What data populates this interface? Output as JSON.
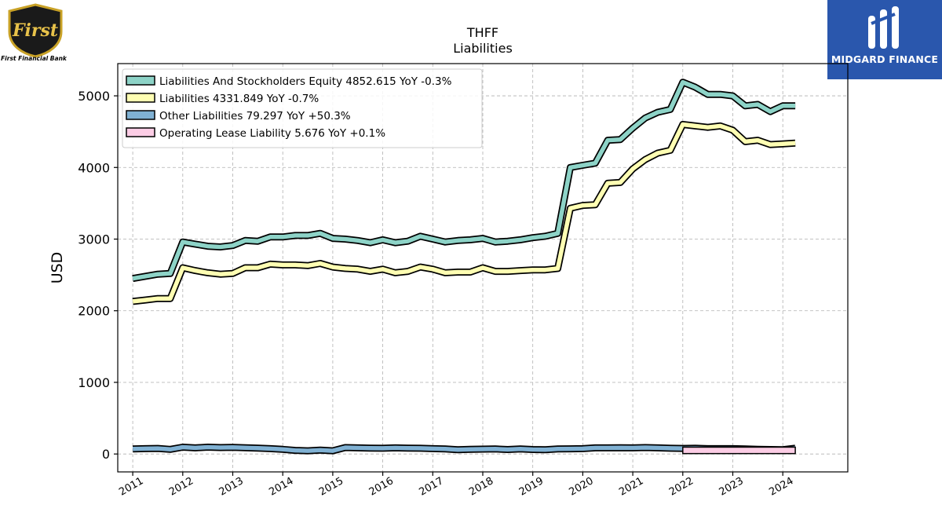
{
  "brand": {
    "left_logo_text": "First",
    "left_caption": "First Financial Bank",
    "right_name": "MIDGARD FINANCE"
  },
  "chart_data": {
    "type": "line",
    "title": "THFF",
    "subtitle": "Liabilities",
    "xlabel": "",
    "ylabel": "USD",
    "xlim": [
      2010.7,
      2025.3
    ],
    "ylim": [
      -250,
      5450
    ],
    "yticks": [
      0,
      1000,
      2000,
      3000,
      4000,
      5000
    ],
    "xticks": [
      "2011",
      "2012",
      "2013",
      "2014",
      "2015",
      "2016",
      "2017",
      "2018",
      "2019",
      "2020",
      "2021",
      "2022",
      "2023",
      "2024"
    ],
    "grid": true,
    "legend_position": "top-left",
    "series": [
      {
        "name": "Liabilities And Stockholders Equity",
        "legend": "Liabilities And Stockholders Equity  4852.615 YoY -0.3%",
        "color": "#8dd3c7",
        "x": [
          2011.0,
          2011.25,
          2011.5,
          2011.75,
          2012.0,
          2012.25,
          2012.5,
          2012.75,
          2013.0,
          2013.25,
          2013.5,
          2013.75,
          2014.0,
          2014.25,
          2014.5,
          2014.75,
          2015.0,
          2015.25,
          2015.5,
          2015.75,
          2016.0,
          2016.25,
          2016.5,
          2016.75,
          2017.0,
          2017.25,
          2017.5,
          2017.75,
          2018.0,
          2018.25,
          2018.5,
          2018.75,
          2019.0,
          2019.25,
          2019.5,
          2019.75,
          2020.0,
          2020.25,
          2020.5,
          2020.75,
          2021.0,
          2021.25,
          2021.5,
          2021.75,
          2022.0,
          2022.25,
          2022.5,
          2022.75,
          2023.0,
          2023.25,
          2023.5,
          2023.75,
          2024.0,
          2024.25
        ],
        "values": [
          2450,
          2480,
          2510,
          2520,
          2960,
          2930,
          2900,
          2890,
          2910,
          2980,
          2970,
          3030,
          3030,
          3050,
          3050,
          3080,
          3010,
          3000,
          2980,
          2950,
          2990,
          2950,
          2970,
          3040,
          3000,
          2960,
          2980,
          2990,
          3010,
          2960,
          2970,
          2990,
          3020,
          3040,
          3080,
          4000,
          4030,
          4060,
          4380,
          4390,
          4550,
          4690,
          4770,
          4810,
          5190,
          5120,
          5020,
          5020,
          5000,
          4860,
          4880,
          4780,
          4860,
          4860
        ]
      },
      {
        "name": "Liabilities",
        "legend": "Liabilities  4331.849 YoY -0.7%",
        "color": "#ffffb3",
        "x": [
          2011.0,
          2011.25,
          2011.5,
          2011.75,
          2012.0,
          2012.25,
          2012.5,
          2012.75,
          2013.0,
          2013.25,
          2013.5,
          2013.75,
          2014.0,
          2014.25,
          2014.5,
          2014.75,
          2015.0,
          2015.25,
          2015.5,
          2015.75,
          2016.0,
          2016.25,
          2016.5,
          2016.75,
          2017.0,
          2017.25,
          2017.5,
          2017.75,
          2018.0,
          2018.25,
          2018.5,
          2018.75,
          2019.0,
          2019.25,
          2019.5,
          2019.75,
          2020.0,
          2020.25,
          2020.5,
          2020.75,
          2021.0,
          2021.25,
          2021.5,
          2021.75,
          2022.0,
          2022.25,
          2022.5,
          2022.75,
          2023.0,
          2023.25,
          2023.5,
          2023.75,
          2024.0,
          2024.25
        ],
        "values": [
          2130,
          2150,
          2170,
          2170,
          2600,
          2560,
          2530,
          2510,
          2520,
          2600,
          2600,
          2650,
          2640,
          2640,
          2630,
          2660,
          2610,
          2590,
          2580,
          2550,
          2580,
          2530,
          2550,
          2610,
          2580,
          2530,
          2540,
          2540,
          2600,
          2550,
          2550,
          2560,
          2570,
          2570,
          2590,
          3430,
          3470,
          3480,
          3780,
          3790,
          3980,
          4110,
          4200,
          4240,
          4600,
          4580,
          4560,
          4580,
          4520,
          4360,
          4380,
          4320,
          4330,
          4340
        ]
      },
      {
        "name": "Other Liabilities",
        "legend": "Other Liabilities  79.297 YoY +50.3%",
        "color": "#80b1d3",
        "x": [
          2011.0,
          2011.25,
          2011.5,
          2011.75,
          2012.0,
          2012.25,
          2012.5,
          2012.75,
          2013.0,
          2013.25,
          2013.5,
          2013.75,
          2014.0,
          2014.25,
          2014.5,
          2014.75,
          2015.0,
          2015.25,
          2015.5,
          2015.75,
          2016.0,
          2016.25,
          2016.5,
          2016.75,
          2017.0,
          2017.25,
          2017.5,
          2017.75,
          2018.0,
          2018.25,
          2018.5,
          2018.75,
          2019.0,
          2019.25,
          2019.5,
          2019.75,
          2020.0,
          2020.25,
          2020.5,
          2020.75,
          2021.0,
          2021.25,
          2021.5,
          2021.75,
          2022.0,
          2022.25,
          2022.5,
          2022.75,
          2023.0,
          2023.25,
          2023.5,
          2023.75,
          2024.0,
          2024.25
        ],
        "values": [
          70,
          75,
          78,
          65,
          95,
          85,
          95,
          90,
          92,
          88,
          82,
          75,
          65,
          50,
          45,
          55,
          45,
          90,
          85,
          82,
          80,
          85,
          82,
          80,
          75,
          70,
          60,
          65,
          68,
          70,
          62,
          70,
          62,
          60,
          70,
          72,
          75,
          85,
          85,
          88,
          85,
          90,
          85,
          80,
          78,
          80,
          75,
          75,
          75,
          70,
          65,
          62,
          60,
          80
        ]
      },
      {
        "name": "Operating Lease Liability",
        "legend": "Operating Lease Liability  5.676 YoY +0.1%",
        "color": "#fccde5",
        "x": [
          2022.0,
          2022.25,
          2022.5,
          2022.75,
          2023.0,
          2023.25,
          2023.5,
          2023.75,
          2024.0,
          2024.25
        ],
        "values": [
          5.7,
          5.7,
          5.7,
          5.7,
          5.7,
          5.7,
          5.7,
          5.7,
          5.7,
          5.7
        ],
        "band_height": 90
      }
    ]
  }
}
